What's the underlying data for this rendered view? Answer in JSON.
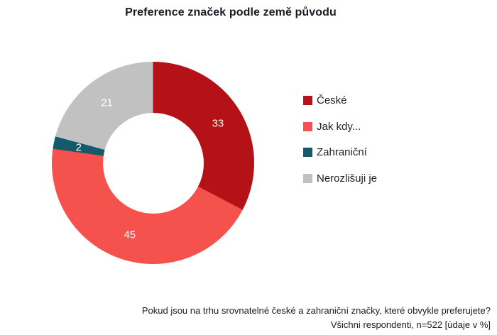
{
  "title": "Preference značek podle země původu",
  "chart_data": {
    "type": "pie",
    "subtype": "donut",
    "title": "Preference značek podle země původu",
    "categories": [
      "České",
      "Jak kdy...",
      "Zahraniční",
      "Nerozlišuji je"
    ],
    "values": [
      33,
      45,
      2,
      21
    ],
    "unit": "%",
    "colors": [
      "#b41217",
      "#f5524d",
      "#145a6b",
      "#c1c1c1"
    ],
    "slice_label_color": "#ffffff",
    "legend_position": "right",
    "start_angle_deg": 0,
    "direction": "clockwise",
    "inner_radius_ratio": 0.5,
    "label_radius_ratio": 0.75
  },
  "footer": {
    "question": "Pokud jsou na trhu srovnatelné české a zahraniční značky, které obvykle preferujete?",
    "sample": "Všichni respondenti, n=522 [údaje v %]"
  }
}
